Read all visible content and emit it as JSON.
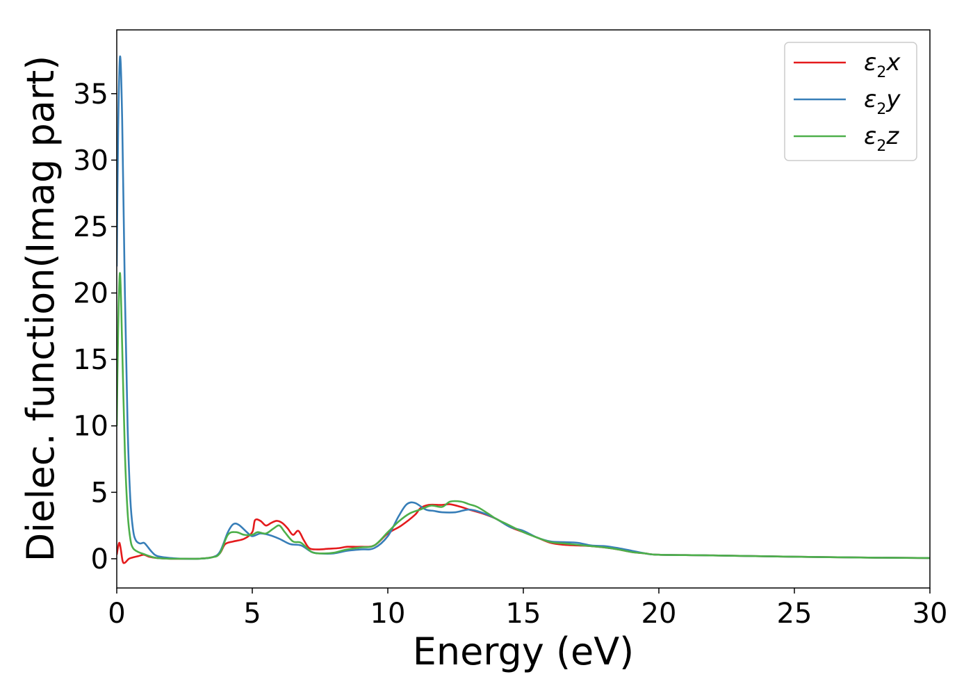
{
  "chart_data": {
    "type": "line",
    "title": "",
    "xlabel": "Energy (eV)",
    "ylabel": "Dielec. function(Imag part)",
    "xlim": [
      0,
      30
    ],
    "ylim": [
      -2.2,
      39.8
    ],
    "xticks": [
      "0",
      "5",
      "10",
      "15",
      "20",
      "25",
      "30"
    ],
    "xtick_values": [
      0,
      5,
      10,
      15,
      20,
      25,
      30
    ],
    "yticks": [
      "0",
      "5",
      "10",
      "15",
      "20",
      "25",
      "30",
      "35"
    ],
    "ytick_values": [
      0,
      5,
      10,
      15,
      20,
      25,
      30,
      35
    ],
    "grid": false,
    "legend_position": "top-right",
    "series": [
      {
        "name": "ε2x",
        "legend": {
          "base": "ε",
          "sub": "2",
          "axis": "x"
        },
        "color": "#e41a1c",
        "points": [
          [
            0,
            0.3
          ],
          [
            0.05,
            0.9
          ],
          [
            0.1,
            1.2
          ],
          [
            0.15,
            0.7
          ],
          [
            0.22,
            -0.2
          ],
          [
            0.3,
            -0.3
          ],
          [
            0.45,
            0.0
          ],
          [
            0.6,
            0.1
          ],
          [
            0.8,
            0.2
          ],
          [
            1.0,
            0.3
          ],
          [
            1.2,
            0.15
          ],
          [
            1.5,
            0.05
          ],
          [
            2,
            0.0
          ],
          [
            2.5,
            0.0
          ],
          [
            3,
            0.0
          ],
          [
            3.5,
            0.1
          ],
          [
            3.8,
            0.4
          ],
          [
            4.0,
            1.1
          ],
          [
            4.3,
            1.3
          ],
          [
            4.7,
            1.5
          ],
          [
            5.0,
            2.0
          ],
          [
            5.1,
            2.9
          ],
          [
            5.3,
            2.85
          ],
          [
            5.5,
            2.5
          ],
          [
            5.7,
            2.7
          ],
          [
            5.9,
            2.85
          ],
          [
            6.1,
            2.7
          ],
          [
            6.3,
            2.3
          ],
          [
            6.5,
            1.8
          ],
          [
            6.7,
            2.1
          ],
          [
            6.9,
            1.4
          ],
          [
            7.1,
            0.8
          ],
          [
            7.4,
            0.7
          ],
          [
            7.8,
            0.75
          ],
          [
            8.2,
            0.8
          ],
          [
            8.5,
            0.9
          ],
          [
            9,
            0.9
          ],
          [
            9.5,
            1.0
          ],
          [
            10,
            1.9
          ],
          [
            10.5,
            2.5
          ],
          [
            11,
            3.3
          ],
          [
            11.2,
            3.8
          ],
          [
            11.5,
            4.05
          ],
          [
            12,
            4.05
          ],
          [
            12.3,
            4.1
          ],
          [
            12.7,
            3.9
          ],
          [
            13,
            3.7
          ],
          [
            13.5,
            3.4
          ],
          [
            14,
            3.0
          ],
          [
            14.5,
            2.4
          ],
          [
            15,
            2.0
          ],
          [
            15.5,
            1.6
          ],
          [
            16,
            1.2
          ],
          [
            16.5,
            1.05
          ],
          [
            17,
            1.0
          ],
          [
            17.5,
            0.95
          ],
          [
            18,
            0.85
          ],
          [
            18.5,
            0.7
          ],
          [
            19,
            0.5
          ],
          [
            19.5,
            0.4
          ],
          [
            20,
            0.3
          ],
          [
            22,
            0.25
          ],
          [
            25,
            0.15
          ],
          [
            28,
            0.08
          ],
          [
            30,
            0.05
          ]
        ]
      },
      {
        "name": "ε2y",
        "legend": {
          "base": "ε",
          "sub": "2",
          "axis": "y"
        },
        "color": "#377eb8",
        "points": [
          [
            0,
            22.0
          ],
          [
            0.05,
            32.0
          ],
          [
            0.12,
            37.8
          ],
          [
            0.2,
            33.0
          ],
          [
            0.3,
            20.0
          ],
          [
            0.4,
            10.0
          ],
          [
            0.5,
            4.5
          ],
          [
            0.6,
            2.2
          ],
          [
            0.7,
            1.4
          ],
          [
            0.85,
            1.15
          ],
          [
            1.0,
            1.2
          ],
          [
            1.1,
            1.0
          ],
          [
            1.3,
            0.5
          ],
          [
            1.5,
            0.2
          ],
          [
            2,
            0.05
          ],
          [
            2.5,
            0.0
          ],
          [
            3,
            0.0
          ],
          [
            3.5,
            0.1
          ],
          [
            3.8,
            0.5
          ],
          [
            4.1,
            2.0
          ],
          [
            4.3,
            2.6
          ],
          [
            4.5,
            2.55
          ],
          [
            4.8,
            2.0
          ],
          [
            5.0,
            1.7
          ],
          [
            5.3,
            1.9
          ],
          [
            5.6,
            1.8
          ],
          [
            6.0,
            1.5
          ],
          [
            6.4,
            1.1
          ],
          [
            6.8,
            1.0
          ],
          [
            7.2,
            0.5
          ],
          [
            7.5,
            0.4
          ],
          [
            8,
            0.4
          ],
          [
            8.5,
            0.6
          ],
          [
            9,
            0.7
          ],
          [
            9.5,
            0.8
          ],
          [
            10,
            1.7
          ],
          [
            10.4,
            3.2
          ],
          [
            10.7,
            4.1
          ],
          [
            11,
            4.2
          ],
          [
            11.4,
            3.7
          ],
          [
            11.7,
            3.6
          ],
          [
            12,
            3.5
          ],
          [
            12.5,
            3.5
          ],
          [
            13,
            3.7
          ],
          [
            13.5,
            3.45
          ],
          [
            14,
            3.0
          ],
          [
            14.5,
            2.4
          ],
          [
            15,
            2.1
          ],
          [
            15.5,
            1.6
          ],
          [
            16,
            1.3
          ],
          [
            16.5,
            1.25
          ],
          [
            17,
            1.2
          ],
          [
            17.5,
            1.0
          ],
          [
            18,
            0.95
          ],
          [
            18.5,
            0.8
          ],
          [
            19,
            0.6
          ],
          [
            19.5,
            0.4
          ],
          [
            20,
            0.3
          ],
          [
            22,
            0.25
          ],
          [
            25,
            0.15
          ],
          [
            28,
            0.08
          ],
          [
            30,
            0.05
          ]
        ]
      },
      {
        "name": "ε2z",
        "legend": {
          "base": "ε",
          "sub": "2",
          "axis": "z"
        },
        "color": "#4daf4a",
        "points": [
          [
            0,
            10.0
          ],
          [
            0.05,
            17.0
          ],
          [
            0.12,
            21.5
          ],
          [
            0.2,
            16.0
          ],
          [
            0.3,
            8.0
          ],
          [
            0.4,
            3.5
          ],
          [
            0.5,
            1.5
          ],
          [
            0.6,
            0.8
          ],
          [
            0.8,
            0.5
          ],
          [
            1.0,
            0.35
          ],
          [
            1.2,
            0.2
          ],
          [
            1.5,
            0.05
          ],
          [
            2,
            0.0
          ],
          [
            2.5,
            0.0
          ],
          [
            3,
            0.0
          ],
          [
            3.5,
            0.1
          ],
          [
            3.8,
            0.4
          ],
          [
            4.1,
            1.8
          ],
          [
            4.4,
            2.0
          ],
          [
            4.7,
            1.8
          ],
          [
            5.0,
            1.8
          ],
          [
            5.2,
            2.0
          ],
          [
            5.5,
            1.9
          ],
          [
            5.8,
            2.3
          ],
          [
            6.0,
            2.5
          ],
          [
            6.2,
            2.0
          ],
          [
            6.5,
            1.3
          ],
          [
            6.8,
            1.2
          ],
          [
            7.2,
            0.5
          ],
          [
            7.6,
            0.4
          ],
          [
            8,
            0.45
          ],
          [
            8.5,
            0.7
          ],
          [
            9,
            0.85
          ],
          [
            9.5,
            1.0
          ],
          [
            10,
            2.0
          ],
          [
            10.4,
            2.8
          ],
          [
            10.8,
            3.4
          ],
          [
            11.2,
            3.7
          ],
          [
            11.6,
            4.0
          ],
          [
            12,
            3.9
          ],
          [
            12.3,
            4.3
          ],
          [
            12.7,
            4.3
          ],
          [
            13,
            4.1
          ],
          [
            13.3,
            3.9
          ],
          [
            13.7,
            3.4
          ],
          [
            14,
            3.0
          ],
          [
            14.5,
            2.5
          ],
          [
            15,
            2.0
          ],
          [
            15.5,
            1.6
          ],
          [
            16,
            1.25
          ],
          [
            16.5,
            1.15
          ],
          [
            17,
            1.05
          ],
          [
            17.5,
            0.95
          ],
          [
            18,
            0.85
          ],
          [
            18.5,
            0.7
          ],
          [
            19,
            0.5
          ],
          [
            19.5,
            0.4
          ],
          [
            20,
            0.3
          ],
          [
            22,
            0.25
          ],
          [
            25,
            0.15
          ],
          [
            28,
            0.08
          ],
          [
            30,
            0.05
          ]
        ]
      }
    ]
  }
}
